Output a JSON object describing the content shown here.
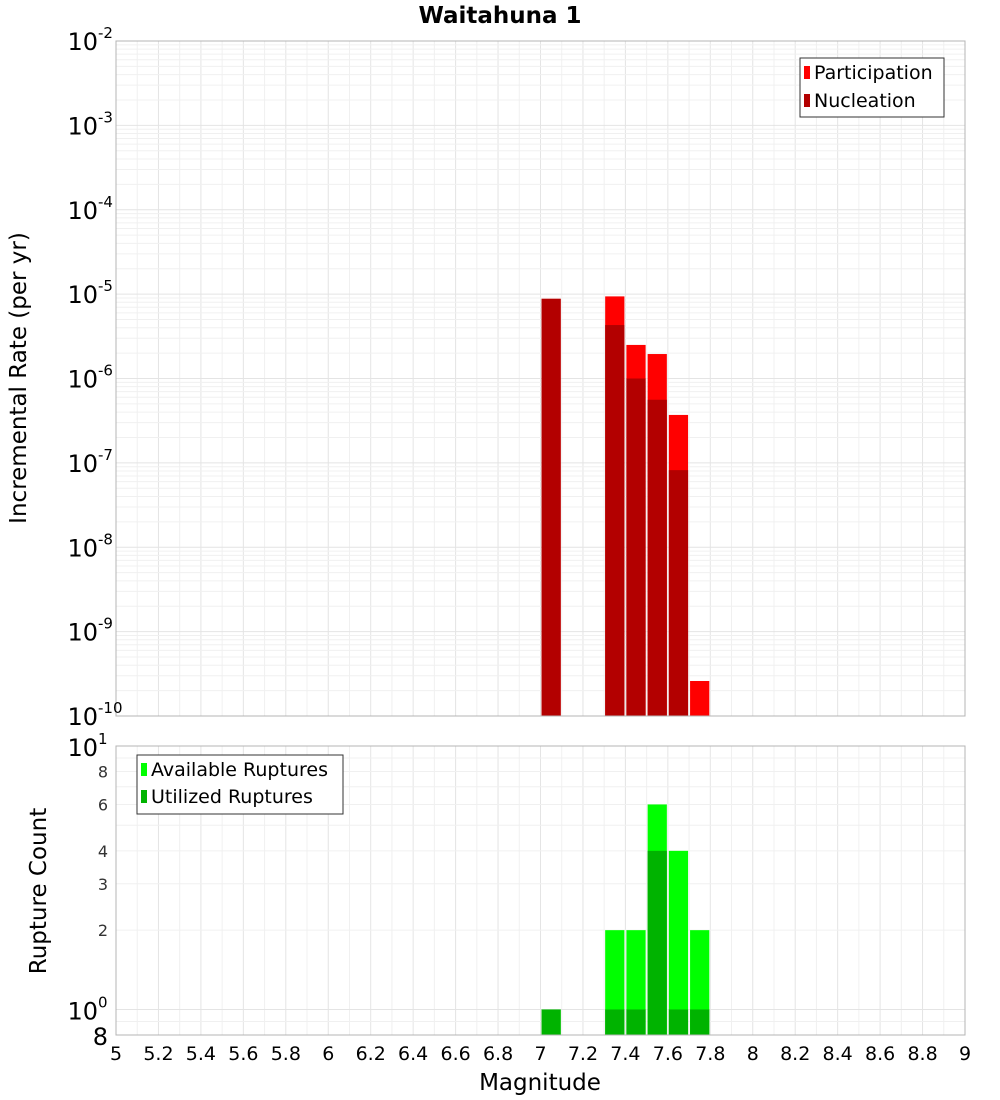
{
  "chart_data": [
    {
      "type": "bar",
      "title": "Waitahuna 1",
      "xlabel": "Magnitude",
      "ylabel": "Incremental Rate (per yr)",
      "yscale": "log",
      "xlim": [
        5,
        9
      ],
      "ylim": [
        1e-10,
        0.01
      ],
      "bin_width": 0.1,
      "x_ticks": [
        "5",
        "5.2",
        "5.4",
        "5.6",
        "5.8",
        "6",
        "6.2",
        "6.4",
        "6.6",
        "6.8",
        "7",
        "7.2",
        "7.4",
        "7.6",
        "7.8",
        "8",
        "8.2",
        "8.4",
        "8.6",
        "8.8",
        "9"
      ],
      "y_ticks": [
        {
          "base": "10",
          "exp": "-2",
          "value": 0.01
        },
        {
          "base": "10",
          "exp": "-3",
          "value": 0.001
        },
        {
          "base": "10",
          "exp": "-4",
          "value": 0.0001
        },
        {
          "base": "10",
          "exp": "-5",
          "value": 1e-05
        },
        {
          "base": "10",
          "exp": "-6",
          "value": 1e-06
        },
        {
          "base": "10",
          "exp": "-7",
          "value": 1e-07
        },
        {
          "base": "10",
          "exp": "-8",
          "value": 1e-08
        },
        {
          "base": "10",
          "exp": "-9",
          "value": 1e-09
        },
        {
          "base": "10",
          "exp": "-10",
          "value": 1e-10
        }
      ],
      "legend_position": "top-right",
      "series": [
        {
          "name": "Participation",
          "color": "#ff0000",
          "x": [
            7.05,
            7.35,
            7.45,
            7.55,
            7.65,
            7.75
          ],
          "values": [
            8.8e-06,
            9.4e-06,
            2.5e-06,
            1.95e-06,
            3.7e-07,
            2.6e-10
          ]
        },
        {
          "name": "Nucleation",
          "color": "#b30000",
          "x": [
            7.05,
            7.35,
            7.45,
            7.55,
            7.65
          ],
          "values": [
            8.8e-06,
            4.3e-06,
            1e-06,
            5.6e-07,
            8.2e-08
          ]
        }
      ]
    },
    {
      "type": "bar",
      "xlabel": "Magnitude",
      "ylabel": "Rupture Count",
      "yscale": "log",
      "xlim": [
        5,
        9
      ],
      "ylim": [
        0.8,
        10
      ],
      "bin_width": 0.1,
      "y_ticks": [
        {
          "label": "8",
          "value": 8
        },
        {
          "label": "6",
          "value": 6
        },
        {
          "label": "4",
          "value": 4
        },
        {
          "label": "3",
          "value": 3
        },
        {
          "label": "2",
          "value": 2
        }
      ],
      "y_major_ticks": [
        {
          "base": "10",
          "exp": "1",
          "value": 10
        },
        {
          "base": "10",
          "exp": "0",
          "value": 1
        }
      ],
      "y_bottom_label": "8",
      "legend_position": "top-left",
      "series": [
        {
          "name": "Available Ruptures",
          "color": "#00ff00",
          "x": [
            7.05,
            7.35,
            7.45,
            7.55,
            7.65,
            7.75
          ],
          "values": [
            1,
            2,
            2,
            6,
            4,
            2
          ]
        },
        {
          "name": "Utilized Ruptures",
          "color": "#00b300",
          "x": [
            7.05,
            7.35,
            7.45,
            7.55,
            7.65,
            7.75
          ],
          "values": [
            1,
            1,
            1,
            4,
            1,
            1
          ]
        }
      ]
    }
  ]
}
